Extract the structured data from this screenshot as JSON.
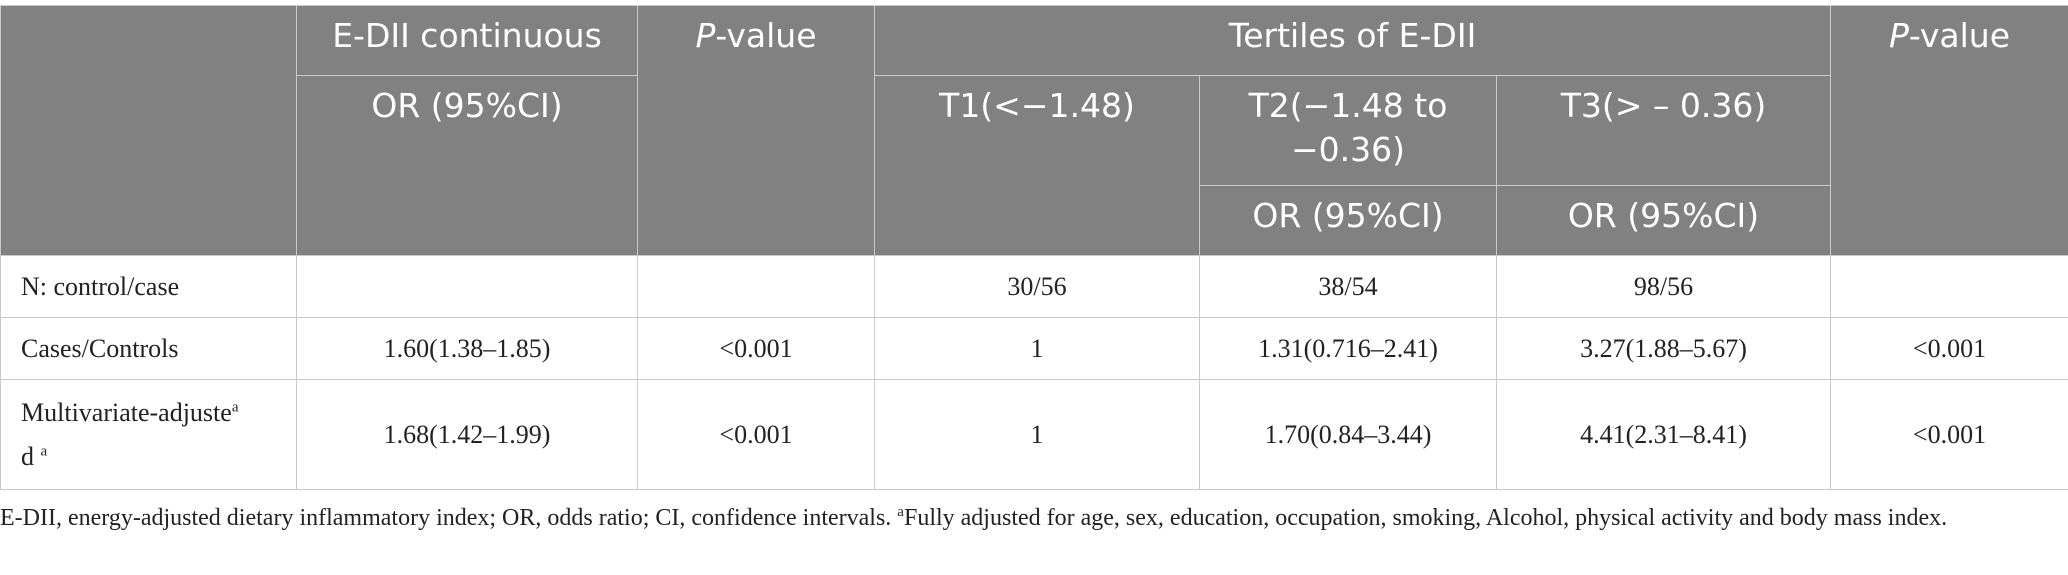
{
  "table": {
    "header": {
      "col_edii": "E-DII continuous",
      "col_p1_italic": "P",
      "col_p1_rest": "-value",
      "col_tertiles": "Tertiles of E-DII",
      "col_p2_italic": "P",
      "col_p2_rest": "-value",
      "or_label": "OR (95%CI)",
      "t1": "T1(<−1.48)",
      "t2": "T2(−1.48 to −0.36)",
      "t3": "T3(> – 0.36)",
      "t2_or": "OR (95%CI)",
      "t3_or": "OR (95%CI)"
    },
    "rows": [
      {
        "label": "N: control/case",
        "edii": "",
        "p1": "",
        "t1": "30/56",
        "t2": "38/54",
        "t3": "98/56",
        "p2": ""
      },
      {
        "label": "Cases/Controls",
        "edii": "1.60(1.38–1.85)",
        "p1": "<0.001",
        "t1": "1",
        "t2": "1.31(0.716–2.41)",
        "t3": "3.27(1.88–5.67)",
        "p2": "<0.001"
      },
      {
        "label_a": "Multivariate-adjuste",
        "label_sup1": "a",
        "label_b": "d ",
        "label_sup2": "a",
        "edii": "1.68(1.42–1.99)",
        "p1": "<0.001",
        "t1": "1",
        "t2": "1.70(0.84–3.44)",
        "t3": "4.41(2.31–8.41)",
        "p2": "<0.001"
      }
    ]
  },
  "footnote": {
    "text": "E-DII, energy-adjusted dietary inflammatory index; OR, odds ratio; CI, confidence intervals. ",
    "sup": "a",
    "text2": "Fully adjusted for age, sex, education, occupation, smoking, Alcohol, physical activity and body mass index."
  }
}
